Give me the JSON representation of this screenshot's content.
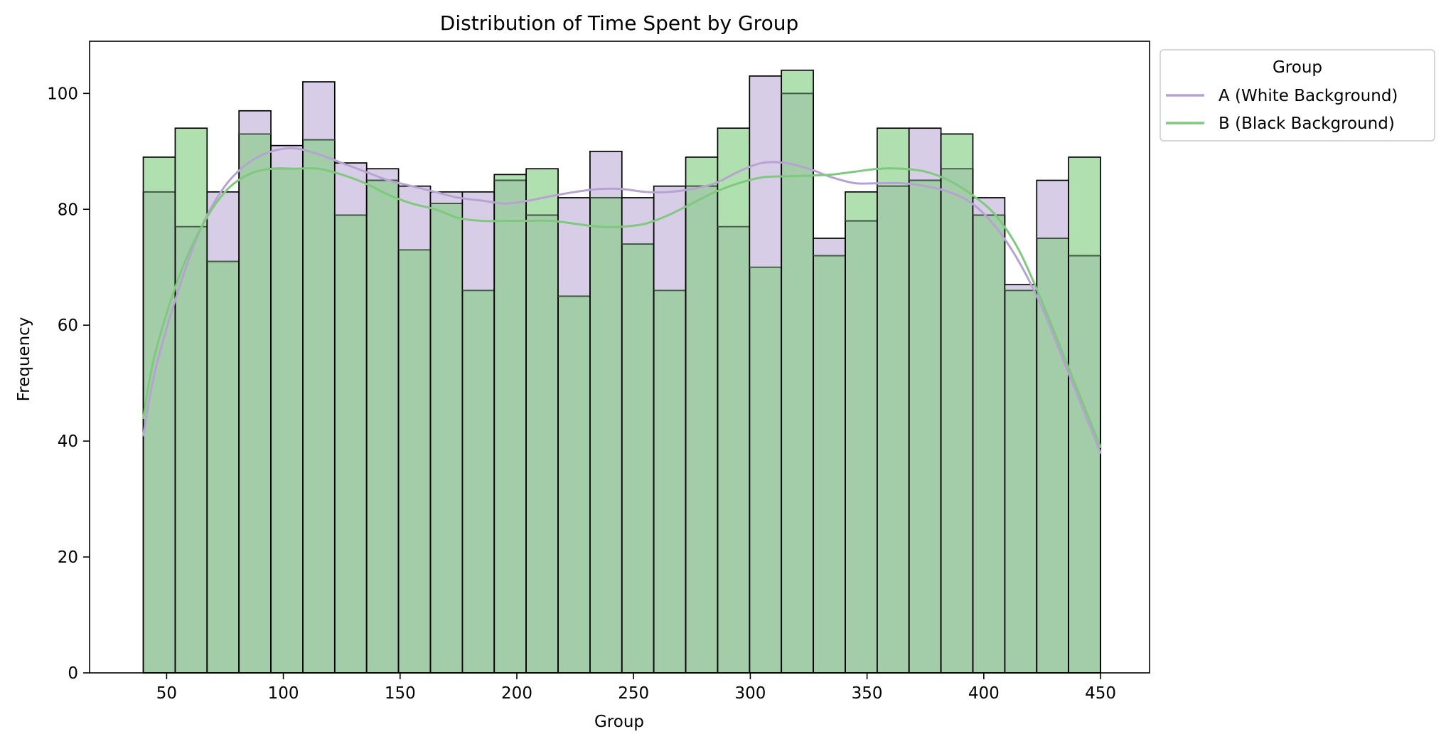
{
  "chart_data": {
    "type": "histogram",
    "title": "Distribution of Time Spent by Group",
    "xlabel": "Group",
    "ylabel": "Frequency",
    "xlim": [
      17,
      471
    ],
    "ylim": [
      0,
      109
    ],
    "xticks": [
      50,
      100,
      150,
      200,
      250,
      300,
      350,
      400,
      450
    ],
    "yticks": [
      0,
      20,
      40,
      60,
      80,
      100
    ],
    "bin_edges": [
      40,
      53.67,
      67.33,
      81,
      94.67,
      108.33,
      122,
      135.67,
      149.33,
      163,
      176.67,
      190.33,
      204,
      217.67,
      231.33,
      245,
      258.67,
      272.33,
      286,
      299.67,
      313.33,
      327,
      340.67,
      354.33,
      368,
      381.67,
      395.33,
      409,
      422.67,
      436.33,
      450
    ],
    "legend": {
      "title": "Group",
      "position": "outside-upper-right"
    },
    "series": [
      {
        "name": "A (White Background)",
        "color": "#b7a3d1",
        "fill_color": "#d8cde7",
        "values": [
          83,
          77,
          83,
          97,
          91,
          102,
          88,
          87,
          84,
          83,
          83,
          85,
          79,
          82,
          90,
          82,
          84,
          84,
          77,
          103,
          100,
          75,
          78,
          84,
          94,
          87,
          82,
          67,
          85,
          72
        ],
        "kde": [
          [
            40,
            41
          ],
          [
            45,
            52
          ],
          [
            55,
            66
          ],
          [
            65,
            77
          ],
          [
            75,
            84
          ],
          [
            85,
            88
          ],
          [
            95,
            90
          ],
          [
            105,
            90.5
          ],
          [
            115,
            89.5
          ],
          [
            125,
            88
          ],
          [
            135,
            86.5
          ],
          [
            145,
            85
          ],
          [
            155,
            84
          ],
          [
            165,
            83
          ],
          [
            175,
            82
          ],
          [
            185,
            81.5
          ],
          [
            195,
            81
          ],
          [
            205,
            81.5
          ],
          [
            215,
            82.3
          ],
          [
            225,
            83
          ],
          [
            235,
            83.5
          ],
          [
            245,
            83.5
          ],
          [
            255,
            83
          ],
          [
            265,
            83
          ],
          [
            275,
            83.5
          ],
          [
            285,
            84.5
          ],
          [
            295,
            86.5
          ],
          [
            305,
            88
          ],
          [
            315,
            88
          ],
          [
            325,
            87
          ],
          [
            335,
            85.5
          ],
          [
            345,
            84.5
          ],
          [
            355,
            84.5
          ],
          [
            365,
            84.5
          ],
          [
            375,
            84
          ],
          [
            385,
            83
          ],
          [
            395,
            81
          ],
          [
            405,
            77
          ],
          [
            415,
            71
          ],
          [
            425,
            63
          ],
          [
            435,
            53
          ],
          [
            445,
            43
          ],
          [
            450,
            38
          ]
        ]
      },
      {
        "name": "B (Black Background)",
        "color": "#7fc97f",
        "fill_color": "#b0dfb0",
        "values": [
          89,
          94,
          71,
          93,
          87,
          92,
          79,
          85,
          73,
          81,
          66,
          86,
          87,
          65,
          82,
          74,
          66,
          89,
          94,
          70,
          104,
          72,
          83,
          94,
          85,
          93,
          79,
          66,
          75,
          89
        ],
        "kde": [
          [
            40,
            44
          ],
          [
            45,
            55
          ],
          [
            55,
            68
          ],
          [
            65,
            77
          ],
          [
            75,
            83
          ],
          [
            85,
            86
          ],
          [
            95,
            87
          ],
          [
            105,
            87
          ],
          [
            115,
            87
          ],
          [
            125,
            86
          ],
          [
            135,
            84.5
          ],
          [
            145,
            82.5
          ],
          [
            155,
            81
          ],
          [
            165,
            80
          ],
          [
            175,
            78.5
          ],
          [
            185,
            78
          ],
          [
            195,
            78
          ],
          [
            205,
            78
          ],
          [
            215,
            78
          ],
          [
            225,
            77.5
          ],
          [
            235,
            77
          ],
          [
            245,
            77
          ],
          [
            255,
            77.5
          ],
          [
            265,
            79
          ],
          [
            275,
            81
          ],
          [
            285,
            83
          ],
          [
            295,
            84.5
          ],
          [
            305,
            85.5
          ],
          [
            315,
            85.7
          ],
          [
            325,
            85.8
          ],
          [
            335,
            86
          ],
          [
            345,
            86.5
          ],
          [
            355,
            87
          ],
          [
            365,
            87
          ],
          [
            375,
            86.5
          ],
          [
            385,
            85
          ],
          [
            395,
            82.5
          ],
          [
            405,
            79
          ],
          [
            415,
            73
          ],
          [
            425,
            64
          ],
          [
            435,
            54
          ],
          [
            445,
            44
          ],
          [
            450,
            39
          ]
        ]
      }
    ],
    "overlap_fill_color": "#a3cca8"
  }
}
